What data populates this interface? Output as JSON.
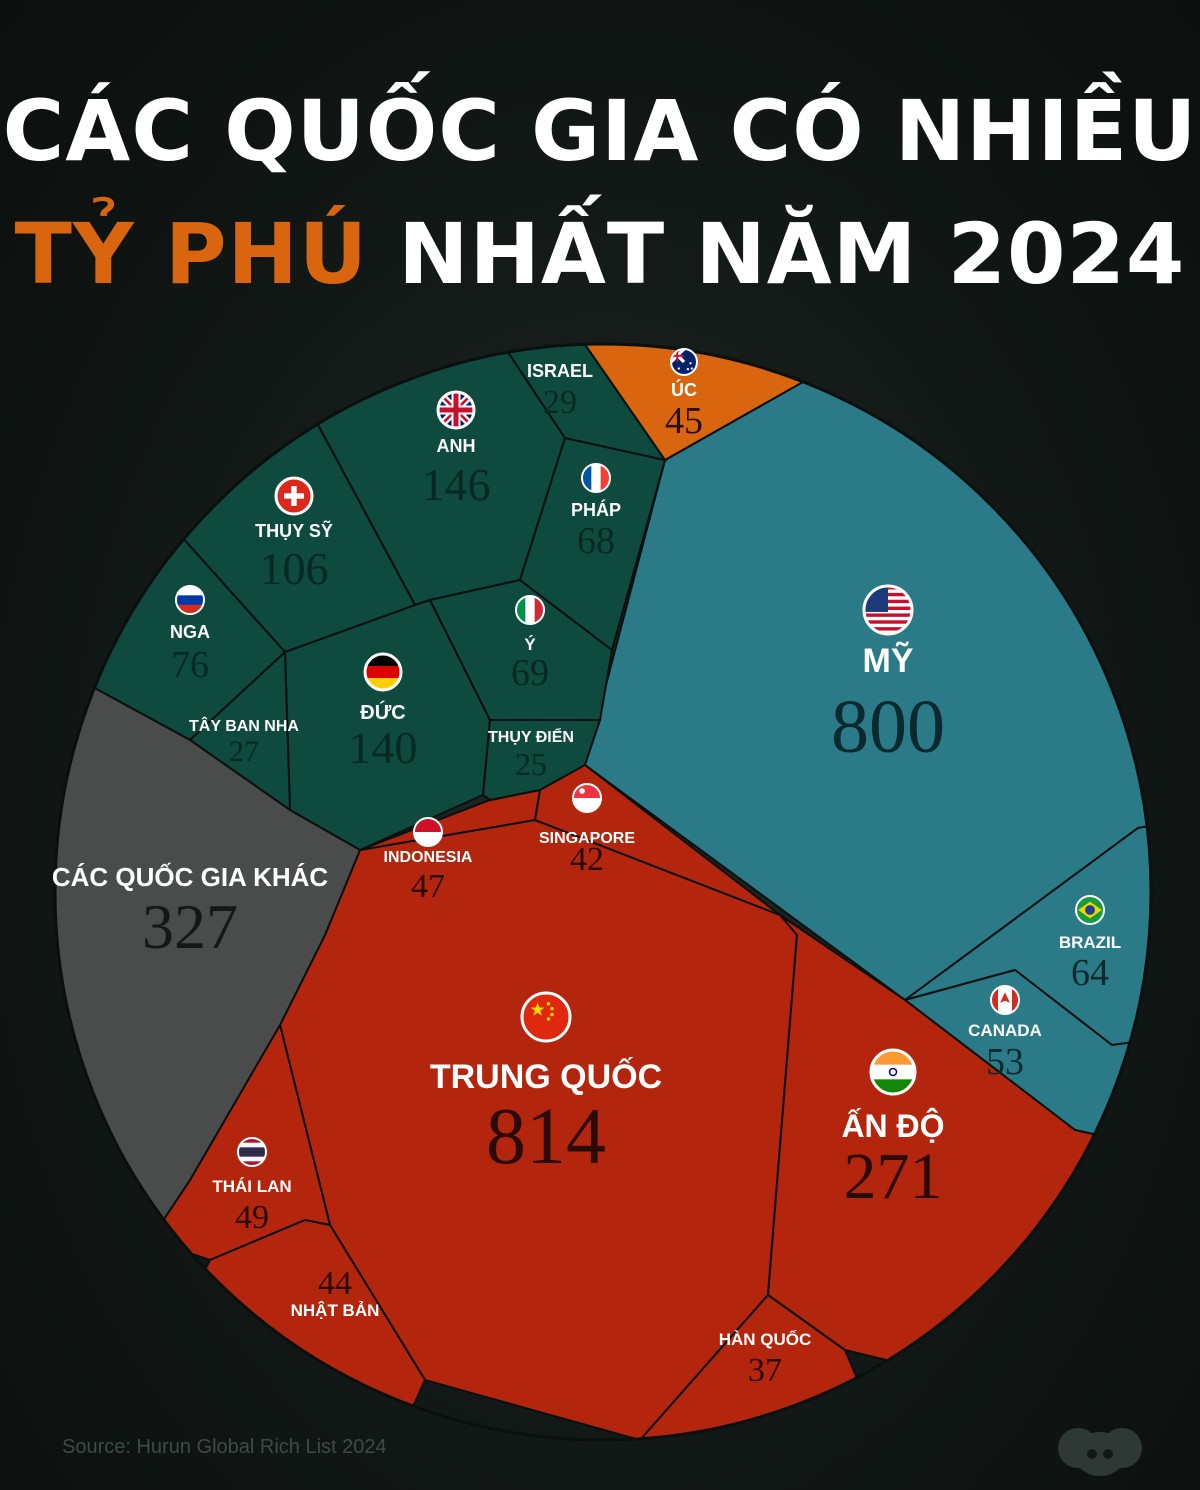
{
  "title": {
    "line1": "CÁC QUỐC GIA CÓ NHIỀU",
    "line2_highlight": "TỶ PHÚ",
    "line2_rest": " NHẤT NĂM 2024"
  },
  "source": "Source: Hurun Global Rich List 2024",
  "colors": {
    "europe": "#0e4a3d",
    "usa_canada_brazil": "#2a7b87",
    "asia": "#b3260d",
    "australia": "#d9650f",
    "other": "#4a4b4b",
    "highlight": "#d9650f"
  },
  "chart_data": {
    "type": "voronoi-treemap",
    "title": "CÁC QUỐC GIA CÓ NHIỀU TỶ PHÚ NHẤT NĂM 2024",
    "series": [
      {
        "name": "MỸ",
        "value": 800,
        "group": "usa_canada_brazil",
        "flag": "us-flag-icon"
      },
      {
        "name": "BRAZIL",
        "value": 64,
        "group": "usa_canada_brazil",
        "flag": "brazil-flag-icon"
      },
      {
        "name": "CANADA",
        "value": 53,
        "group": "usa_canada_brazil",
        "flag": "canada-flag-icon"
      },
      {
        "name": "TRUNG QUỐC",
        "value": 814,
        "group": "asia",
        "flag": "china-flag-icon"
      },
      {
        "name": "ẤN ĐỘ",
        "value": 271,
        "group": "asia",
        "flag": "india-flag-icon"
      },
      {
        "name": "INDONESIA",
        "value": 47,
        "group": "asia",
        "flag": "indonesia-flag-icon"
      },
      {
        "name": "SINGAPORE",
        "value": 42,
        "group": "asia",
        "flag": "singapore-flag-icon"
      },
      {
        "name": "THÁI LAN",
        "value": 49,
        "group": "asia",
        "flag": "thailand-flag-icon"
      },
      {
        "name": "NHẬT BẢN",
        "value": 44,
        "group": "asia",
        "flag": ""
      },
      {
        "name": "HÀN QUỐC",
        "value": 37,
        "group": "asia",
        "flag": ""
      },
      {
        "name": "ANH",
        "value": 146,
        "group": "europe",
        "flag": "uk-flag-icon"
      },
      {
        "name": "ĐỨC",
        "value": 140,
        "group": "europe",
        "flag": "germany-flag-icon"
      },
      {
        "name": "THỤY SỸ",
        "value": 106,
        "group": "europe",
        "flag": "switzerland-flag-icon"
      },
      {
        "name": "NGA",
        "value": 76,
        "group": "europe",
        "flag": "russia-flag-icon"
      },
      {
        "name": "Ý",
        "value": 69,
        "group": "europe",
        "flag": "italy-flag-icon"
      },
      {
        "name": "PHÁP",
        "value": 68,
        "group": "europe",
        "flag": "france-flag-icon"
      },
      {
        "name": "ISRAEL",
        "value": 29,
        "group": "europe",
        "flag": ""
      },
      {
        "name": "TÂY BAN NHA",
        "value": 27,
        "group": "europe",
        "flag": ""
      },
      {
        "name": "THỤY ĐIỂN",
        "value": 25,
        "group": "europe",
        "flag": ""
      },
      {
        "name": "ÚC",
        "value": 45,
        "group": "australia",
        "flag": "australia-flag-icon"
      },
      {
        "name": "CÁC QUỐC GIA KHÁC",
        "value": 327,
        "group": "other",
        "flag": ""
      }
    ]
  }
}
